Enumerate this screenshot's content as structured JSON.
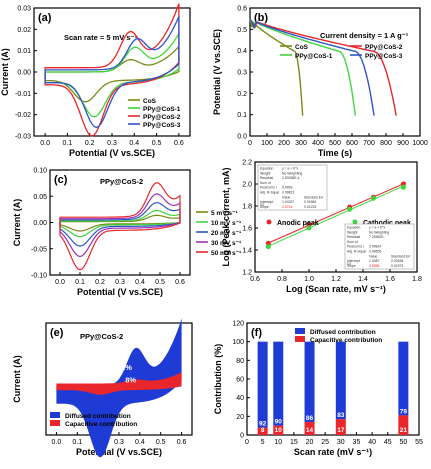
{
  "figure": {
    "panels": [
      {
        "letter": "(a)",
        "xlabel": "Potential (V vs.SCE)",
        "ylabel": "Current (A)",
        "note": "Scan rate = 5 mV s⁻¹"
      },
      {
        "letter": "(b)",
        "xlabel": "Time (s)",
        "ylabel": "Potential (V vs.SCE)",
        "note": "Current density = 1 A g⁻¹"
      },
      {
        "letter": "(c)",
        "xlabel": "Potential (V vs.SCE)",
        "ylabel": "Current (A)",
        "note": "PPy@CoS-2"
      },
      {
        "letter": "(d)",
        "xlabel": "Log (Scan rate, mV s⁻¹)",
        "ylabel": "Log (Peak current, mA)",
        "note": ""
      },
      {
        "letter": "(e)",
        "xlabel": "Potential (V vs.SCE)",
        "ylabel": "Current (A)",
        "note": "PPy@CoS-2"
      },
      {
        "letter": "(f)",
        "xlabel": "Scan rate (mV s⁻¹)",
        "ylabel": "Contribution (%)",
        "note": ""
      }
    ]
  },
  "chart_data": [
    {
      "type": "line",
      "panel": "(a)",
      "xlabel": "Potential (V vs.SCE)",
      "ylabel": "Current (A)",
      "xlim": [
        -0.05,
        0.65
      ],
      "ylim": [
        -0.03,
        0.03
      ],
      "xticks": [
        0.0,
        0.1,
        0.2,
        0.3,
        0.4,
        0.5,
        0.6
      ],
      "yticks": [
        -0.03,
        -0.02,
        -0.01,
        0.0,
        0.01,
        0.02,
        0.03
      ],
      "ytick_labels": [
        "-0.03",
        "-0.02",
        "-0.01",
        "0.00",
        "0.01",
        "0.02",
        "0.03"
      ],
      "annotation": "Scan rate = 5 mV s⁻¹",
      "legend": "bottom-right",
      "series": [
        {
          "name": "CoS",
          "color": "#7a8a16",
          "peak_ox": [
            0.38,
            0.005
          ],
          "peak_red": [
            0.18,
            -0.01
          ],
          "end": [
            0.6,
            0.012
          ],
          "base_up": 0.0,
          "base_low": -0.004
        },
        {
          "name": "PPy@CoS-1",
          "color": "#3fd63f",
          "peak_ox": [
            0.4,
            0.01
          ],
          "peak_red": [
            0.22,
            -0.016
          ],
          "end": [
            0.6,
            0.018
          ],
          "base_up": 0.0,
          "base_low": -0.005
        },
        {
          "name": "PPy@CoS-2",
          "color": "#e8262b",
          "peak_ox": [
            0.38,
            0.015
          ],
          "peak_red": [
            0.21,
            -0.024
          ],
          "end": [
            0.6,
            0.03
          ],
          "base_up": 0.002,
          "base_low": -0.006
        },
        {
          "name": "PPy@CoS-3",
          "color": "#2f55c9",
          "peak_ox": [
            0.41,
            0.012
          ],
          "peak_red": [
            0.23,
            -0.021
          ],
          "end": [
            0.6,
            0.025
          ],
          "base_up": 0.001,
          "base_low": -0.005
        }
      ]
    },
    {
      "type": "line",
      "panel": "(b)",
      "xlabel": "Time (s)",
      "ylabel": "Potential (V vs.SCE)",
      "xlim": [
        0,
        1000
      ],
      "ylim": [
        0.0,
        0.6
      ],
      "xticks": [
        0,
        100,
        200,
        300,
        400,
        500,
        600,
        700,
        800,
        900,
        1000
      ],
      "yticks": [
        0.0,
        0.1,
        0.2,
        0.3,
        0.4,
        0.5,
        0.6
      ],
      "ytick_labels": [
        "0.0",
        "0.1",
        "0.2",
        "0.3",
        "0.4",
        "0.5",
        "0.6"
      ],
      "annotation": "Current density = 1 A g⁻¹",
      "legend": "top-right",
      "series": [
        {
          "name": "CoS",
          "color": "#7a8a16",
          "end_time": 310
        },
        {
          "name": "PPy@CoS-1",
          "color": "#3fd63f",
          "end_time": 620
        },
        {
          "name": "PPy@CoS-2",
          "color": "#e8262b",
          "end_time": 860
        },
        {
          "name": "PPy@CoS-3",
          "color": "#2f55c9",
          "end_time": 730
        }
      ]
    },
    {
      "type": "line",
      "panel": "(c)",
      "xlabel": "Potential (V vs.SCE)",
      "ylabel": "Current (A)",
      "xlim": [
        -0.05,
        0.65
      ],
      "ylim": [
        -0.1,
        0.1
      ],
      "xticks": [
        0.0,
        0.1,
        0.2,
        0.3,
        0.4,
        0.5,
        0.6
      ],
      "yticks": [
        -0.1,
        -0.05,
        0.0,
        0.05,
        0.1
      ],
      "ytick_labels": [
        "-0.10",
        "-0.05",
        "0.00",
        "0.05",
        "0.10"
      ],
      "annotation": "PPy@CoS-2",
      "legend": "bottom-right",
      "series": [
        {
          "name": "5 mV s⁻¹",
          "color": "#7a8a16",
          "scale": 0.18
        },
        {
          "name": "10 mV s⁻¹",
          "color": "#3fd63f",
          "scale": 0.3
        },
        {
          "name": "20 mV s⁻¹",
          "color": "#2f55c9",
          "scale": 0.5
        },
        {
          "name": "30 mV s⁻¹",
          "color": "#9b32b8",
          "scale": 0.72
        },
        {
          "name": "50 mV s⁻¹",
          "color": "#e8262b",
          "scale": 1.0
        }
      ]
    },
    {
      "type": "scatter",
      "panel": "(d)",
      "xlabel": "Log (Scan rate, mV s⁻¹)",
      "ylabel": "Log (Peak current, mA)",
      "xlim": [
        0.6,
        1.8
      ],
      "ylim": [
        1.2,
        2.2
      ],
      "xticks": [
        0.6,
        0.8,
        1.0,
        1.2,
        1.4,
        1.6,
        1.8
      ],
      "yticks": [
        1.2,
        1.4,
        1.6,
        1.8,
        2.0,
        2.2
      ],
      "ytick_labels": [
        "1.2",
        "1.4",
        "1.6",
        "1.8",
        "2.0",
        "2.2"
      ],
      "series": [
        {
          "name": "Anodic peak",
          "color": "#e8262b",
          "x": [
            0.699,
            1.0,
            1.301,
            1.477,
            1.699
          ],
          "y": [
            1.46,
            1.63,
            1.79,
            1.88,
            2.0
          ]
        },
        {
          "name": "Cathodic peak",
          "color": "#3fd63f",
          "x": [
            0.699,
            1.0,
            1.301,
            1.477,
            1.699
          ],
          "y": [
            1.43,
            1.6,
            1.77,
            1.87,
            1.97
          ]
        }
      ],
      "fit_tables": [
        {
          "position": "top-left",
          "rows": [
            [
              "Equation",
              "y = a + b*x",
              ""
            ],
            [
              "Weight",
              "No Weighting",
              ""
            ],
            [
              "Residual",
              "2.83338E-4",
              ""
            ],
            [
              "Sum of",
              "",
              ""
            ],
            [
              "Pearson's r",
              "0.9993",
              ""
            ],
            [
              "Adj. R-Squar",
              "0.99813",
              ""
            ],
            [
              "",
              "Value",
              "Standard Err"
            ],
            [
              "Intercept",
              "1.04337",
              "0.01584"
            ],
            [
              "Slope",
              "0.5724",
              "0.01233"
            ]
          ],
          "row_label": "D2",
          "highlight": "0.5724"
        },
        {
          "position": "bottom-right",
          "rows": [
            [
              "Equation",
              "y = a + b*x",
              ""
            ],
            [
              "Weight",
              "No Weighting",
              ""
            ],
            [
              "Residual",
              "7.25362E-",
              ""
            ],
            [
              "Sum of",
              "",
              ""
            ],
            [
              "Pearson's r",
              "0.99814",
              ""
            ],
            [
              "Adj. R-Squar",
              "0.99505",
              ""
            ],
            [
              "",
              "Value",
              "Standard Err"
            ],
            [
              "Intercept",
              "1.0487",
              "0.02638"
            ],
            [
              "Slope",
              "0.5555",
              "0.01973"
            ]
          ],
          "row_label": "D2",
          "highlight": "0.5555"
        }
      ]
    },
    {
      "type": "area",
      "panel": "(e)",
      "xlabel": "Potential (V vs.SCE)",
      "ylabel": "Current (A)",
      "xlim": [
        -0.05,
        0.65
      ],
      "ylim": [
        -0.02,
        0.03
      ],
      "xticks": [
        0.0,
        0.1,
        0.2,
        0.3,
        0.4,
        0.5,
        0.6
      ],
      "annotation": "PPy@CoS-2",
      "labels": [
        "92%",
        "8%"
      ],
      "legend": "bottom-left",
      "series": [
        {
          "name": "Diffused contribution",
          "color": "#1f3bd6"
        },
        {
          "name": "Capacitive contribution",
          "color": "#e8262b"
        }
      ]
    },
    {
      "type": "bar",
      "panel": "(f)",
      "xlabel": "Scan rate (mV s⁻¹)",
      "ylabel": "Contribution (%)",
      "xlim": [
        0,
        55
      ],
      "ylim": [
        0,
        120
      ],
      "xticks": [
        0,
        5,
        10,
        15,
        20,
        25,
        30,
        35,
        40,
        45,
        50,
        55
      ],
      "yticks": [
        0,
        20,
        40,
        60,
        80,
        100,
        120
      ],
      "ytick_labels": [
        "0",
        "20",
        "40",
        "60",
        "80",
        "100",
        "120"
      ],
      "legend": "top",
      "categories": [
        5,
        10,
        20,
        30,
        50
      ],
      "series": [
        {
          "name": "Diffused contribution",
          "color": "#1f3bd6",
          "values": [
            92,
            90,
            86,
            83,
            79
          ]
        },
        {
          "name": "Capacitive contribution",
          "color": "#e8262b",
          "values": [
            8,
            10,
            14,
            17,
            21
          ]
        }
      ]
    }
  ]
}
